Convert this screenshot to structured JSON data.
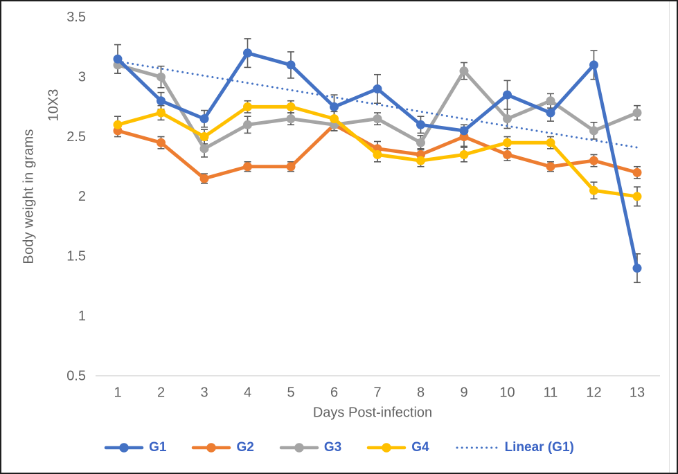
{
  "colors": {
    "background": "#FFFFFF",
    "frame_border": "#1F1F1F",
    "inner_edge_line": "#E0E0E0",
    "axis_text": "#636363",
    "axis_line": "#D9D9D9",
    "error_bar": "#595959",
    "legend_text": "#3A63C4"
  },
  "chart_data": {
    "type": "line",
    "title": "",
    "xlabel": "Days Post-infection",
    "ylabel": "Body weight in grams",
    "ylabel_secondary": "10X3",
    "x": [
      1,
      2,
      3,
      4,
      5,
      6,
      7,
      8,
      9,
      10,
      11,
      12,
      13
    ],
    "y_ticks": [
      3.5,
      3,
      2.5,
      2,
      1.5,
      1,
      0.5
    ],
    "ylim": [
      0.5,
      3.5
    ],
    "xlim": [
      1,
      13
    ],
    "grid": false,
    "legend_position": "bottom",
    "marker": "circle",
    "error_bars": true,
    "series": [
      {
        "name": "G1",
        "color": "#4472C4",
        "values": [
          3.15,
          2.8,
          2.65,
          3.2,
          3.1,
          2.75,
          2.9,
          2.6,
          2.55,
          2.85,
          2.7,
          3.1,
          1.4
        ],
        "errors": [
          0.12,
          0.07,
          0.07,
          0.12,
          0.11,
          0.1,
          0.12,
          0.07,
          0.05,
          0.12,
          0.07,
          0.12,
          0.12
        ]
      },
      {
        "name": "G2",
        "color": "#ED7D31",
        "values": [
          2.55,
          2.45,
          2.15,
          2.25,
          2.25,
          2.6,
          2.4,
          2.35,
          2.5,
          2.35,
          2.25,
          2.3,
          2.2
        ],
        "errors": [
          0.05,
          0.05,
          0.04,
          0.04,
          0.04,
          0.05,
          0.06,
          0.05,
          0.08,
          0.05,
          0.04,
          0.05,
          0.05
        ]
      },
      {
        "name": "G3",
        "color": "#A5A5A5",
        "values": [
          3.1,
          3.0,
          2.4,
          2.6,
          2.65,
          2.6,
          2.65,
          2.45,
          3.05,
          2.65,
          2.8,
          2.55,
          2.7
        ],
        "errors": [
          0.07,
          0.09,
          0.07,
          0.07,
          0.05,
          0.05,
          0.05,
          0.06,
          0.07,
          0.08,
          0.06,
          0.07,
          0.06
        ]
      },
      {
        "name": "G4",
        "color": "#FFC000",
        "values": [
          2.6,
          2.7,
          2.5,
          2.75,
          2.75,
          2.65,
          2.35,
          2.3,
          2.35,
          2.45,
          2.45,
          2.05,
          2.0
        ],
        "errors": [
          0.07,
          0.06,
          0.06,
          0.05,
          0.05,
          0.06,
          0.06,
          0.05,
          0.06,
          0.05,
          0.05,
          0.07,
          0.08
        ]
      }
    ],
    "trendline": {
      "name": "Linear (G1)",
      "for_series": "G1",
      "style": "dotted",
      "color": "#4472C4",
      "start_x": 1,
      "start_y": 3.13,
      "end_x": 13,
      "end_y": 2.41
    }
  }
}
